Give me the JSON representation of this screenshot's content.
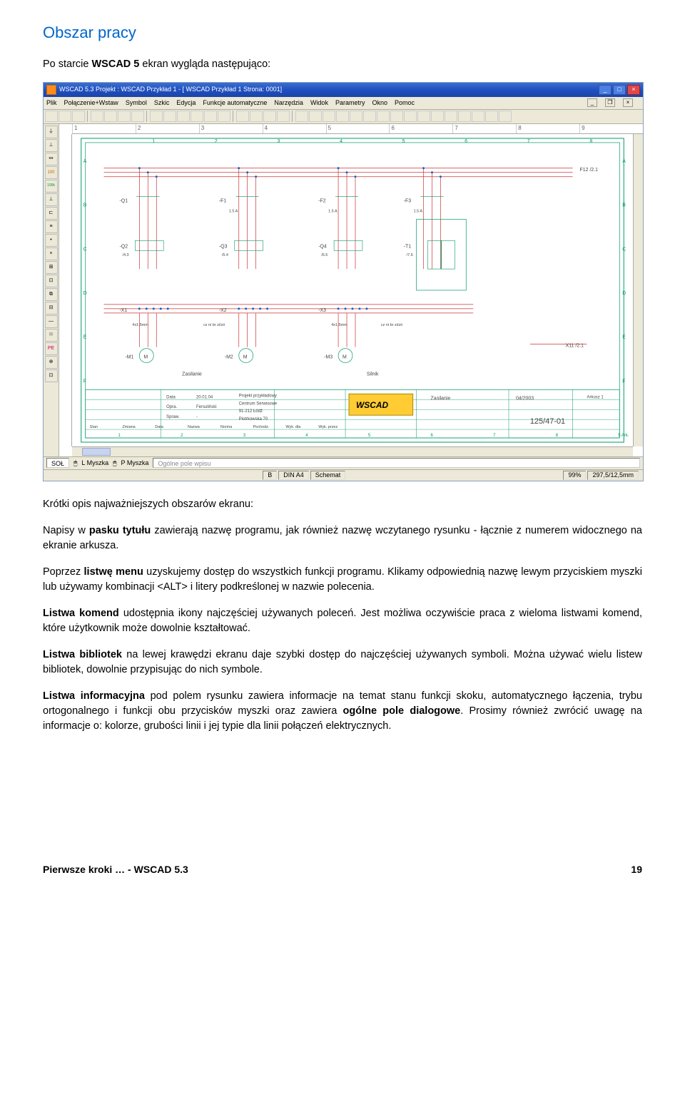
{
  "heading": "Obszar pracy",
  "intro_prefix": "Po starcie ",
  "intro_bold": "WSCAD 5",
  "intro_suffix": " ekran wygląda następująco:",
  "screenshot": {
    "titlebar": "WSCAD 5.3  Projekt : WSCAD Przykład 1 - [ WSCAD Przykład 1 Strona: 0001]",
    "win_min": "_",
    "win_max": "□",
    "win_close": "×",
    "menubar": [
      "Plik",
      "Połączenie+Wstaw",
      "Symbol",
      "Szkic",
      "Edycja",
      "Funkcje automatyczne",
      "Narzędzia",
      "Widok",
      "Parametry",
      "Okno",
      "Pomoc"
    ],
    "mdi_min": "_",
    "mdi_max": "❐",
    "mdi_close": "×",
    "side_icons": [
      "⏚",
      "⊥",
      "⏛",
      "100",
      "100k",
      "⊥",
      "⊏",
      "≡",
      "•",
      "×",
      "⊞",
      "⊡",
      "⧉",
      "⊟",
      "—",
      "☉",
      "PE",
      "⊕",
      "⊡"
    ],
    "ruler_h": [
      "1",
      "2",
      "3",
      "4",
      "5",
      "6",
      "7",
      "8",
      "9"
    ],
    "infobar": {
      "sol": "SOŁ",
      "lm": "L Myszka",
      "pm": "P Myszka",
      "dialog": "Ogólne pole wpisu"
    },
    "statusbar": {
      "b": "B",
      "format": "DIN A4",
      "mode": "Schemat",
      "zoom": "99%",
      "coords": "297,5/12,5mm"
    },
    "diagram": {
      "colors": {
        "frame": "#009966",
        "line_red": "#cc3333",
        "node": "#0066cc",
        "text": "#444444",
        "logo_bg": "#ffcc33",
        "logo_text": "#000000"
      },
      "q_top": [
        "-Q1",
        "-F1",
        "-F2",
        "-F3"
      ],
      "q_mid": [
        "-Q2",
        "-Q3",
        "-Q4",
        "-T1"
      ],
      "x_labels": [
        "-X1",
        "-X2",
        "-X3",
        "F12"
      ],
      "m_labels": [
        "-M1",
        "-M2",
        "-M3"
      ],
      "botrows": [
        "Zasilanie",
        "Silnik"
      ],
      "titleblock": {
        "left_keys": [
          "Data",
          "Opra.",
          "Spraw."
        ],
        "left_vals": [
          "20.01.04",
          "Fersuliński",
          "-"
        ],
        "mid": [
          "Projekt przykładowy",
          "Centrum Serwisowe",
          "91-212 Łódź",
          "Piotrkowska 70"
        ],
        "logo": "WSCAD",
        "right_lbl": "Zasilanie",
        "right_num": "04/2003",
        "drawing_no": "125/47-01",
        "sheet": "Arkusz 1",
        "botcells": [
          "Stan",
          "Zmiana",
          "Data",
          "Nazwa",
          "Norma",
          "Pochodz.",
          "Wyk. dla",
          "Wyk. przez"
        ],
        "botnums": [
          "1",
          "2",
          "3",
          "4",
          "5",
          "6",
          "7",
          "8",
          "5 Ark."
        ]
      }
    }
  },
  "p1": "Krótki opis najważniejszych obszarów ekranu:",
  "p2_a": "Napisy w ",
  "p2_b": "pasku tytułu",
  "p2_c": " zawierają nazwę programu, jak również nazwę wczytanego rysunku - łącznie z numerem widocznego na ekranie arkusza.",
  "p3_a": "Poprzez ",
  "p3_b": "listwę menu",
  "p3_c": " uzyskujemy dostęp do wszystkich funkcji programu. Klikamy odpowiednią nazwę lewym przyciskiem myszki lub używamy kombinacji <ALT> i litery podkreślonej w nazwie polecenia.",
  "p4_a": "Listwa komend",
  "p4_b": " udostępnia ikony najczęściej używanych poleceń. Jest możliwa oczywiście praca z wieloma listwami komend, które użytkownik może dowolnie kształtować.",
  "p5_a": "Listwa bibliotek",
  "p5_b": " na lewej krawędzi ekranu daje szybki dostęp do najczęściej używanych symboli. Można używać wielu listew bibliotek, dowolnie przypisując do nich symbole.",
  "p6_a": "Listwa informacyjna",
  "p6_b": " pod polem rysunku zawiera informacje na temat stanu funkcji skoku, automatycznego łączenia, trybu ortogonalnego i funkcji obu przycisków myszki oraz zawiera ",
  "p6_c": "ogólne pole dialogowe",
  "p6_d": ". Prosimy również zwrócić uwagę na informacje o: kolorze, grubości linii i jej typie dla linii połączeń elektrycznych.",
  "footer_left": "Pierwsze kroki … - WSCAD 5.3",
  "footer_page": "19"
}
